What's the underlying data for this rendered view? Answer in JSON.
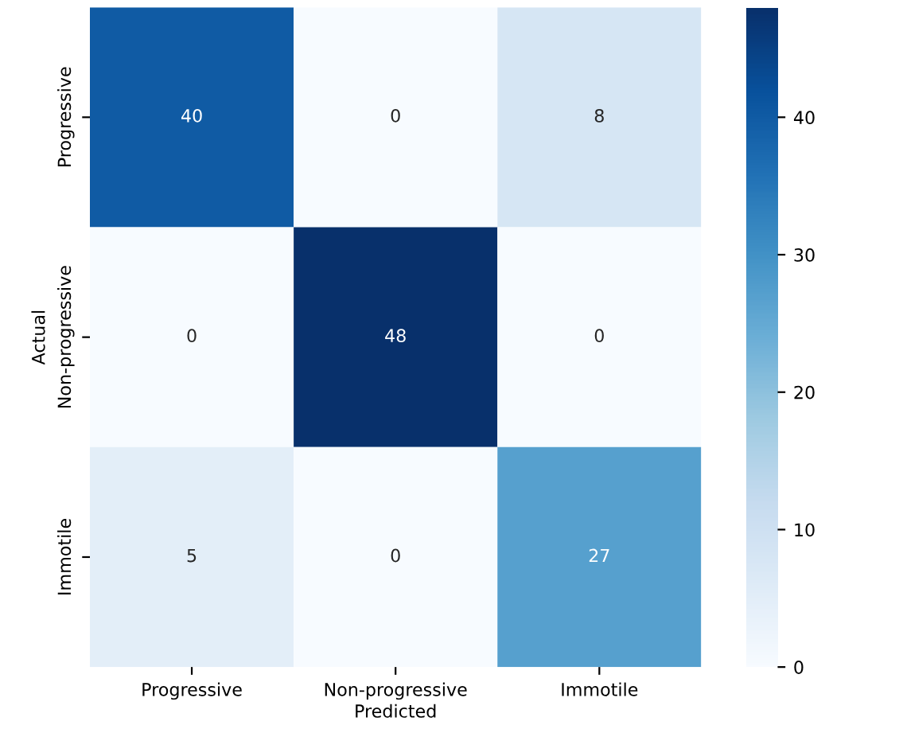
{
  "chart_data": {
    "type": "heatmap",
    "xlabel": "Predicted",
    "ylabel": "Actual",
    "categories": [
      "Progressive",
      "Non-progressive",
      "Immotile"
    ],
    "y_categories": [
      "Progressive",
      "Non-progressive",
      "Immotile"
    ],
    "cells": [
      [
        40,
        0,
        8
      ],
      [
        0,
        48,
        0
      ],
      [
        5,
        0,
        27
      ]
    ],
    "data_labels": true,
    "clim": [
      0,
      48
    ],
    "cticks": [
      0,
      10,
      20,
      30,
      40
    ]
  }
}
